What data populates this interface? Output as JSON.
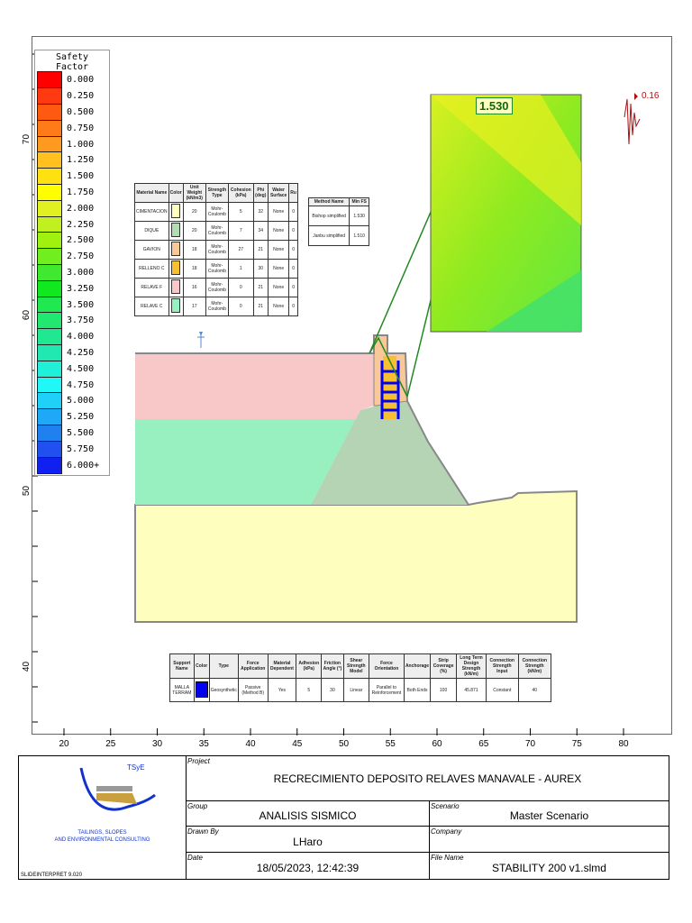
{
  "legend": {
    "title": "Safety Factor",
    "items": [
      {
        "v": "0.000",
        "c": "#ff0000"
      },
      {
        "v": "0.250",
        "c": "#ff3a10"
      },
      {
        "v": "0.500",
        "c": "#ff5a10"
      },
      {
        "v": "0.750",
        "c": "#ff7a18"
      },
      {
        "v": "1.000",
        "c": "#ff9a20"
      },
      {
        "v": "1.250",
        "c": "#ffc020"
      },
      {
        "v": "1.500",
        "c": "#ffe010"
      },
      {
        "v": "1.750",
        "c": "#ffff00"
      },
      {
        "v": "2.000",
        "c": "#e0f020"
      },
      {
        "v": "2.250",
        "c": "#c0f020"
      },
      {
        "v": "2.500",
        "c": "#a0f010"
      },
      {
        "v": "2.750",
        "c": "#70ee20"
      },
      {
        "v": "3.000",
        "c": "#40e830"
      },
      {
        "v": "3.250",
        "c": "#10e820"
      },
      {
        "v": "3.500",
        "c": "#20e850"
      },
      {
        "v": "3.750",
        "c": "#20e870"
      },
      {
        "v": "4.000",
        "c": "#20e890"
      },
      {
        "v": "4.250",
        "c": "#20e8b0"
      },
      {
        "v": "4.500",
        "c": "#20f0d8"
      },
      {
        "v": "4.750",
        "c": "#20f8f8"
      },
      {
        "v": "5.000",
        "c": "#20d0f8"
      },
      {
        "v": "5.250",
        "c": "#20a8f8"
      },
      {
        "v": "5.500",
        "c": "#2080f0"
      },
      {
        "v": "5.750",
        "c": "#2050f0"
      },
      {
        "v": "6.000+",
        "c": "#1020f0"
      }
    ]
  },
  "y_axis": [
    "70",
    "60",
    "50",
    "40"
  ],
  "x_axis": [
    "20",
    "25",
    "30",
    "35",
    "40",
    "45",
    "50",
    "55",
    "60",
    "65",
    "70",
    "75",
    "80"
  ],
  "materials": {
    "headers": [
      "Material Name",
      "Color",
      "Unit Weight (kN/m3)",
      "Strength Type",
      "Cohesion (kPa)",
      "Phi (deg)",
      "Water Surface",
      "Ru"
    ],
    "rows": [
      {
        "name": "CIMENTACION",
        "color": "#fefebe",
        "uw": "20",
        "type": "Mohr-Coulomb",
        "c": "5",
        "phi": "32",
        "ws": "None",
        "ru": "0"
      },
      {
        "name": "DIQUE",
        "color": "#b4dcb4",
        "uw": "20",
        "type": "Mohr-Coulomb",
        "c": "7",
        "phi": "34",
        "ws": "None",
        "ru": "0"
      },
      {
        "name": "GAVION",
        "color": "#f8c898",
        "uw": "18",
        "type": "Mohr-Coulomb",
        "c": "27",
        "phi": "21",
        "ws": "None",
        "ru": "0"
      },
      {
        "name": "RELLENO C",
        "color": "#f8c030",
        "uw": "18",
        "type": "Mohr-Coulomb",
        "c": "1",
        "phi": "30",
        "ws": "None",
        "ru": "0"
      },
      {
        "name": "RELAVE F",
        "color": "#f8c8c8",
        "uw": "16",
        "type": "Mohr-Coulomb",
        "c": "0",
        "phi": "21",
        "ws": "None",
        "ru": "0"
      },
      {
        "name": "RELAVE C",
        "color": "#98f0c0",
        "uw": "17",
        "type": "Mohr-Coulomb",
        "c": "0",
        "phi": "21",
        "ws": "None",
        "ru": "0"
      }
    ]
  },
  "methods": {
    "headers": [
      "Method Name",
      "Min FS"
    ],
    "rows": [
      {
        "name": "Bishop simplified",
        "fs": "1.530"
      },
      {
        "name": "Janbu simplified",
        "fs": "1.510"
      }
    ]
  },
  "min_fs_label": "1.530",
  "seismic_label": "0.16",
  "supports": {
    "headers": [
      "Support Name",
      "Color",
      "Type",
      "Force Application",
      "Material Dependent",
      "Adhesion (kPa)",
      "Friction Angle (°)",
      "Shear Strength Model",
      "Force Orientation",
      "Anchorage",
      "Strip Coverage (%)",
      "Long Term Design Strength (kN/m)",
      "Connection Strength Input",
      "Connection Strength (kN/m)"
    ],
    "rows": [
      [
        "MALLA TERRAM",
        "",
        "Geosynthetic",
        "Passive (Method B)",
        "Yes",
        "5",
        "30",
        "Linear",
        "Parallel to Reinforcement",
        "Both Ends",
        "100",
        "45.871",
        "Constant",
        "40"
      ]
    ],
    "color": "#0000ee"
  },
  "titleblock": {
    "logo_text": "TSyE",
    "company_lines": [
      "TAILINGS, SLOPES",
      "AND ENVIRONMENTAL CONSULTING"
    ],
    "software": "SLIDEINTERPRET 9.020",
    "project_label": "Project",
    "project": "RECRECIMIENTO DEPOSITO RELAVES MANAVALE - AUREX",
    "group_label": "Group",
    "group": "ANALISIS SISMICO",
    "scenario_label": "Scenario",
    "scenario": "Master Scenario",
    "drawn_label": "Drawn By",
    "drawn": "LHaro",
    "company_label": "Company",
    "company": "",
    "date_label": "Date",
    "date": "18/05/2023, 12:42:39",
    "file_label": "File Name",
    "file": "STABILITY 200 v1.slmd"
  }
}
